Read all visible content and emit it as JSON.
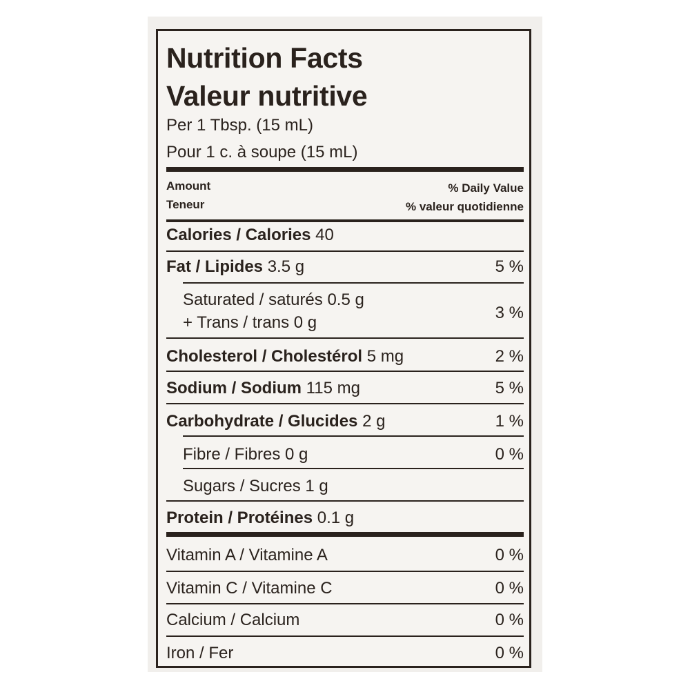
{
  "label": {
    "title_en": "Nutrition Facts",
    "title_fr": "Valeur nutritive",
    "serving_en": "Per 1 Tbsp. (15 mL)",
    "serving_fr": "Pour 1 c. à soupe (15 mL)",
    "header": {
      "amount_en": "Amount",
      "amount_fr": "Teneur",
      "dv_en": "% Daily Value",
      "dv_fr": "% valeur quotidienne"
    },
    "calories": {
      "name": "Calories / Calories",
      "amount": "40"
    },
    "fat": {
      "name": "Fat / Lipides",
      "amount": "3.5 g",
      "dv": "5 %"
    },
    "saturated": {
      "line1": "Saturated / saturés 0.5 g",
      "line2": "+ Trans / trans 0 g",
      "dv": "3 %"
    },
    "cholesterol": {
      "name": "Cholesterol / Cholestérol",
      "amount": "5 mg",
      "dv": "2 %"
    },
    "sodium": {
      "name": "Sodium / Sodium",
      "amount": "115 mg",
      "dv": "5 %"
    },
    "carbohydrate": {
      "name": "Carbohydrate / Glucides",
      "amount": "2 g",
      "dv": "1 %"
    },
    "fibre": {
      "text": "Fibre / Fibres 0 g",
      "dv": "0 %"
    },
    "sugars": {
      "text": "Sugars / Sucres 1 g"
    },
    "protein": {
      "name": "Protein / Protéines",
      "amount": "0.1 g"
    },
    "vitamin_a": {
      "text": "Vitamin A / Vitamine A",
      "dv": "0 %"
    },
    "vitamin_c": {
      "text": "Vitamin C / Vitamine C",
      "dv": "0 %"
    },
    "calcium": {
      "text": "Calcium / Calcium",
      "dv": "0 %"
    },
    "iron": {
      "text": "Iron / Fer",
      "dv": "0 %"
    }
  }
}
